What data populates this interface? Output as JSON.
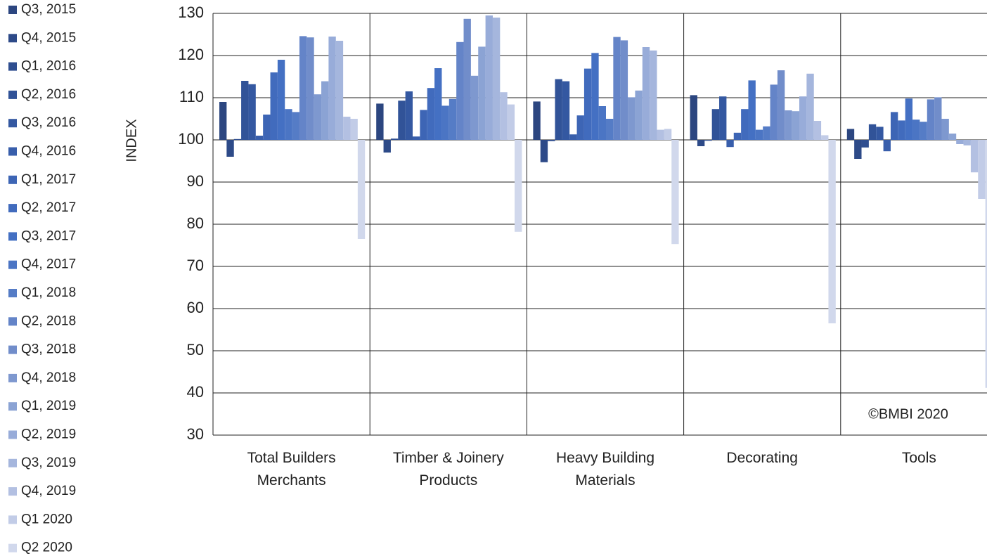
{
  "chart_data": {
    "type": "bar",
    "y_label": "INDEX",
    "annotation": "©BMBI 2020",
    "categories": [
      "Total Builders Merchants",
      "Timber & Joinery Products",
      "Heavy Building Materials",
      "Decorating",
      "Tools"
    ],
    "ylim": [
      30,
      130
    ],
    "yticks": [
      30,
      40,
      50,
      60,
      70,
      80,
      90,
      100,
      110,
      120,
      130
    ],
    "bar_base": 100,
    "grid": true,
    "legend": "left",
    "series": [
      {
        "name": "Q3, 2015",
        "color": "#2c4680",
        "values": [
          109,
          108.6,
          109.1,
          110.6,
          102.6
        ]
      },
      {
        "name": "Q4, 2015",
        "color": "#2d4a88",
        "values": [
          96,
          97,
          94.7,
          98.5,
          95.5
        ]
      },
      {
        "name": "Q1, 2016",
        "color": "#2f4e90",
        "values": [
          100.2,
          100.3,
          99.7,
          99.8,
          98.2
        ]
      },
      {
        "name": "Q2, 2016",
        "color": "#315398",
        "values": [
          114,
          109.3,
          114.4,
          107.3,
          103.7
        ]
      },
      {
        "name": "Q3, 2016",
        "color": "#3458a1",
        "values": [
          113.2,
          111.5,
          113.9,
          110.3,
          103.1
        ]
      },
      {
        "name": "Q4, 2016",
        "color": "#385eab",
        "values": [
          101,
          100.8,
          101.3,
          98.3,
          97.3
        ]
      },
      {
        "name": "Q1, 2017",
        "color": "#3d65b5",
        "values": [
          106,
          107.1,
          105.8,
          101.7,
          106.6
        ]
      },
      {
        "name": "Q2, 2017",
        "color": "#416bbd",
        "values": [
          116,
          112.3,
          116.9,
          107.3,
          104.6
        ]
      },
      {
        "name": "Q3, 2017",
        "color": "#4470c3",
        "values": [
          119,
          117,
          120.6,
          114.1,
          109.8
        ]
      },
      {
        "name": "Q4, 2017",
        "color": "#4b75c4",
        "values": [
          107.3,
          108.1,
          108,
          102.4,
          104.8
        ]
      },
      {
        "name": "Q1, 2018",
        "color": "#557cc6",
        "values": [
          106.6,
          109.7,
          105,
          103.2,
          104.3
        ]
      },
      {
        "name": "Q2, 2018",
        "color": "#6484c8",
        "values": [
          124.6,
          123.2,
          124.4,
          113.1,
          109.6
        ]
      },
      {
        "name": "Q3, 2018",
        "color": "#718dca",
        "values": [
          124.3,
          128.7,
          123.6,
          116.5,
          110.1
        ]
      },
      {
        "name": "Q4, 2018",
        "color": "#7e98cf",
        "values": [
          110.8,
          115.2,
          110.1,
          107,
          105
        ]
      },
      {
        "name": "Q1, 2019",
        "color": "#8ba3d4",
        "values": [
          113.9,
          122.1,
          111.7,
          106.8,
          101.5
        ]
      },
      {
        "name": "Q2, 2019",
        "color": "#98acd9",
        "values": [
          124.5,
          129.5,
          122,
          110.3,
          99
        ]
      },
      {
        "name": "Q3, 2019",
        "color": "#a5b6dd",
        "values": [
          123.5,
          129,
          121.2,
          115.7,
          98.7
        ]
      },
      {
        "name": "Q4, 2019",
        "color": "#b3c0e2",
        "values": [
          105.5,
          111.3,
          102.4,
          104.5,
          92.3
        ]
      },
      {
        "name": "Q1 2020",
        "color": "#c2cce7",
        "values": [
          105,
          108.4,
          102.6,
          101.1,
          86
        ]
      },
      {
        "name": "Q2 2020",
        "color": "#d1d8ec",
        "values": [
          76.5,
          78.2,
          75.3,
          56.5,
          41.2
        ]
      }
    ]
  }
}
